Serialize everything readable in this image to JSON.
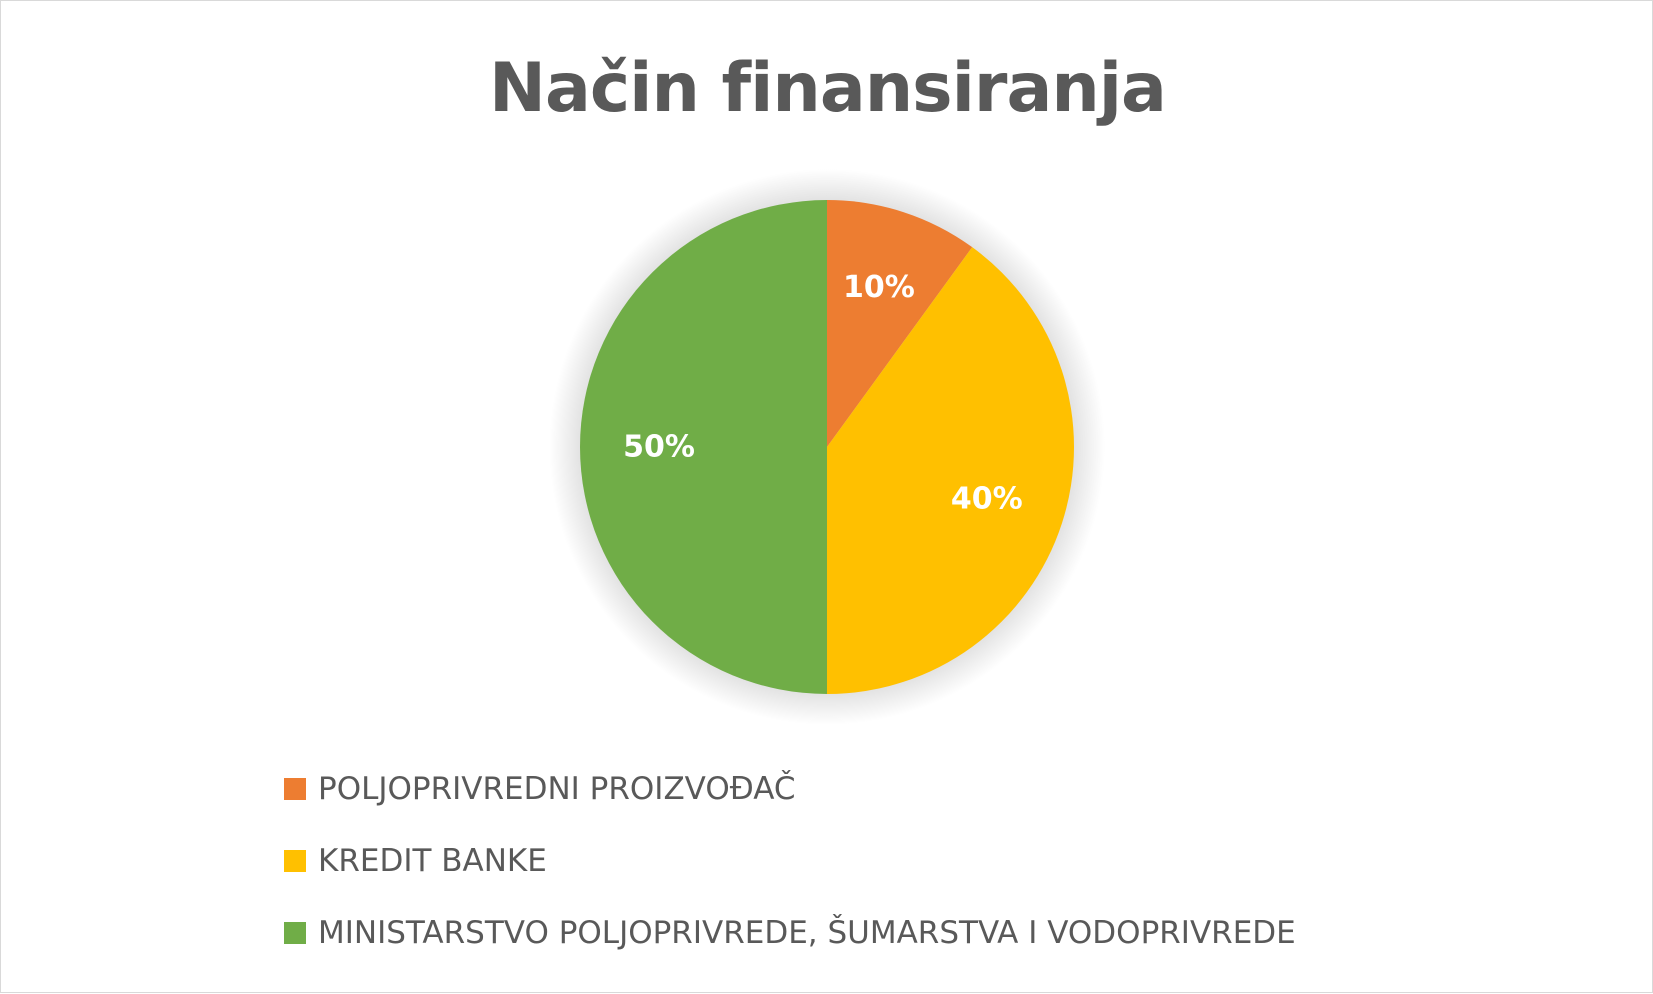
{
  "chart_data": {
    "type": "pie",
    "title": "Način finansiranja",
    "categories": [
      "POLJOPRIVREDNI PROIZVOĐAČ",
      "KREDIT BANKE",
      "MINISTARSTVO POLJOPRIVREDE, ŠUMARSTVA I VODOPRIVREDE"
    ],
    "values": [
      10,
      40,
      50
    ],
    "data_labels": [
      "10%",
      "40%",
      "50%"
    ],
    "colors": [
      "#ED7D31",
      "#FFC000",
      "#70AD47"
    ],
    "legend_position": "bottom",
    "start_angle": "12 o'clock, clockwise"
  }
}
